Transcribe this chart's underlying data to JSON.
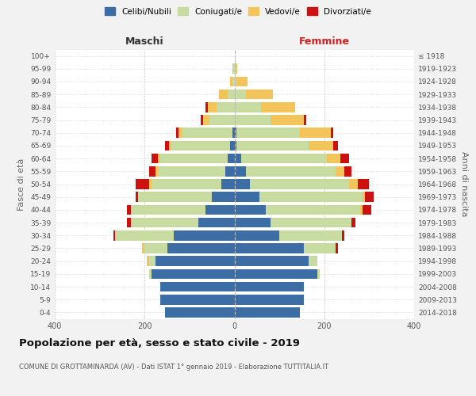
{
  "age_groups": [
    "0-4",
    "5-9",
    "10-14",
    "15-19",
    "20-24",
    "25-29",
    "30-34",
    "35-39",
    "40-44",
    "45-49",
    "50-54",
    "55-59",
    "60-64",
    "65-69",
    "70-74",
    "75-79",
    "80-84",
    "85-89",
    "90-94",
    "95-99",
    "100+"
  ],
  "birth_years": [
    "2014-2018",
    "2009-2013",
    "2004-2008",
    "1999-2003",
    "1994-1998",
    "1989-1993",
    "1984-1988",
    "1979-1983",
    "1974-1978",
    "1969-1973",
    "1964-1968",
    "1959-1963",
    "1954-1958",
    "1949-1953",
    "1944-1948",
    "1939-1943",
    "1934-1938",
    "1929-1933",
    "1924-1928",
    "1919-1923",
    "≤ 1918"
  ],
  "maschi_celibi": [
    155,
    165,
    165,
    185,
    175,
    150,
    135,
    80,
    65,
    50,
    30,
    20,
    15,
    10,
    5,
    0,
    0,
    0,
    0,
    0,
    0
  ],
  "maschi_coniugati": [
    0,
    0,
    0,
    5,
    15,
    50,
    130,
    150,
    165,
    165,
    155,
    150,
    150,
    130,
    110,
    55,
    40,
    15,
    5,
    2,
    0
  ],
  "maschi_vedovi": [
    0,
    0,
    0,
    0,
    5,
    5,
    0,
    0,
    0,
    0,
    5,
    5,
    5,
    5,
    10,
    15,
    20,
    20,
    5,
    2,
    0
  ],
  "maschi_divorziati": [
    0,
    0,
    0,
    0,
    0,
    0,
    5,
    10,
    10,
    5,
    30,
    15,
    15,
    10,
    5,
    5,
    5,
    0,
    0,
    0,
    0
  ],
  "femmine_celibi": [
    145,
    155,
    155,
    185,
    165,
    155,
    100,
    80,
    70,
    55,
    35,
    25,
    15,
    5,
    5,
    0,
    0,
    0,
    0,
    0,
    0
  ],
  "femmine_coniugati": [
    0,
    0,
    0,
    5,
    20,
    70,
    140,
    180,
    210,
    230,
    220,
    200,
    190,
    160,
    140,
    80,
    60,
    25,
    5,
    2,
    0
  ],
  "femmine_vedovi": [
    0,
    0,
    0,
    0,
    0,
    0,
    0,
    0,
    5,
    5,
    20,
    20,
    30,
    55,
    70,
    75,
    75,
    60,
    25,
    5,
    0
  ],
  "femmine_divorziati": [
    0,
    0,
    0,
    0,
    0,
    5,
    5,
    10,
    20,
    20,
    25,
    15,
    20,
    10,
    5,
    5,
    0,
    0,
    0,
    0,
    0
  ],
  "colors": {
    "celibi": "#3c6ea5",
    "coniugati": "#c8dba0",
    "vedovi": "#f2c45a",
    "divorziati": "#cc1111"
  },
  "legend_labels": [
    "Celibi/Nubili",
    "Coniugati/e",
    "Vedovi/e",
    "Divorziati/e"
  ],
  "title": "Popolazione per età, sesso e stato civile - 2019",
  "subtitle": "COMUNE DI GROTTAMINARDA (AV) - Dati ISTAT 1° gennaio 2019 - Elaborazione TUTTITALIA.IT",
  "label_maschi": "Maschi",
  "label_femmine": "Femmine",
  "ylabel_left": "Fasce di età",
  "ylabel_right": "Anni di nascita",
  "xlim": 400,
  "background_color": "#f2f2f2",
  "plot_bg_color": "#ffffff",
  "grid_color": "#cccccc"
}
